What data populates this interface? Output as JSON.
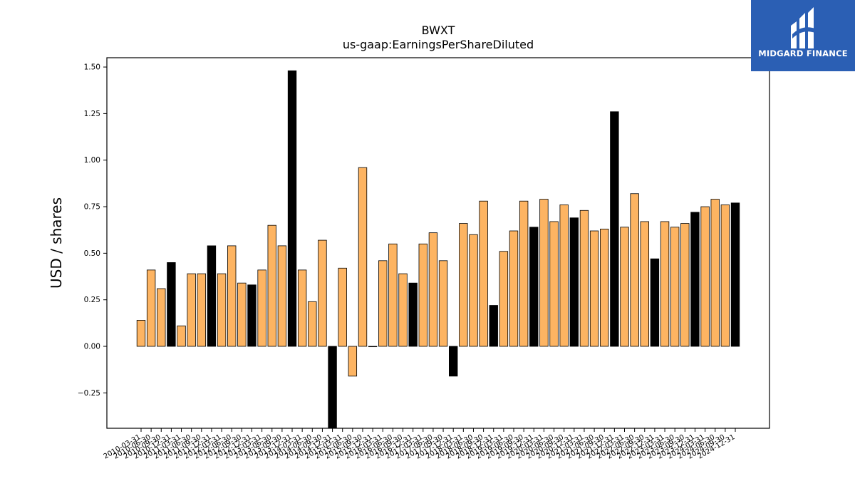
{
  "brand": {
    "name": "MIDGARD FINANCE",
    "bg_color": "#2b5fb4"
  },
  "colors": {
    "bar_default": "#fdb462",
    "bar_highlight": "#000000",
    "bar_edge": "#000000"
  },
  "chart_data": {
    "type": "bar",
    "title": "BWXT",
    "subtitle": "us-gaap:EarningsPerShareDiluted",
    "xlabel": "",
    "ylabel": "USD / shares",
    "ylim": [
      -0.44,
      1.55
    ],
    "yticks": [
      -0.25,
      0.0,
      0.25,
      0.5,
      0.75,
      1.0,
      1.25,
      1.5
    ],
    "ytick_labels": [
      "−0.25",
      "0.00",
      "0.25",
      "0.50",
      "0.75",
      "1.00",
      "1.25",
      "1.50"
    ],
    "grid": false,
    "legend": "none",
    "categories": [
      "2010-03-31",
      "2010-06-30",
      "2010-09-30",
      "2010-12-31",
      "2011-03-31",
      "2011-06-30",
      "2011-09-30",
      "2011-12-31",
      "2012-03-31",
      "2012-06-30",
      "2012-09-30",
      "2012-12-31",
      "2013-03-31",
      "2013-06-30",
      "2013-09-30",
      "2013-12-31",
      "2014-03-31",
      "2014-06-30",
      "2014-09-30",
      "2014-12-31",
      "2015-03-31",
      "2015-06-30",
      "2015-09-30",
      "2015-12-31",
      "2016-03-31",
      "2016-06-30",
      "2016-09-30",
      "2016-12-31",
      "2017-03-31",
      "2017-06-30",
      "2017-09-30",
      "2017-12-31",
      "2018-03-31",
      "2018-06-30",
      "2018-09-30",
      "2018-12-31",
      "2019-03-31",
      "2019-06-30",
      "2019-09-30",
      "2019-12-31",
      "2020-03-31",
      "2020-06-30",
      "2020-09-30",
      "2020-12-31",
      "2021-03-31",
      "2021-06-30",
      "2021-09-30",
      "2021-12-31",
      "2022-03-31",
      "2022-06-30",
      "2022-09-30",
      "2022-12-31",
      "2023-03-31",
      "2023-06-30",
      "2023-09-30",
      "2023-12-31",
      "2024-03-31",
      "2024-06-30",
      "2024-09-30",
      "2024-12-31"
    ],
    "values": [
      0.14,
      0.41,
      0.31,
      0.45,
      0.11,
      0.39,
      0.39,
      0.54,
      0.39,
      0.54,
      0.34,
      0.33,
      0.41,
      0.65,
      0.54,
      1.48,
      0.41,
      0.24,
      0.57,
      -0.45,
      0.42,
      -0.16,
      0.96,
      0.0,
      0.46,
      0.55,
      0.39,
      0.34,
      0.55,
      0.61,
      0.46,
      -0.16,
      0.66,
      0.6,
      0.78,
      0.22,
      0.51,
      0.62,
      0.78,
      0.64,
      0.79,
      0.67,
      0.76,
      0.69,
      0.73,
      0.62,
      0.63,
      1.26,
      0.64,
      0.82,
      0.67,
      0.47,
      0.67,
      0.64,
      0.66,
      0.72,
      0.75,
      0.79,
      0.76,
      0.77
    ],
    "highlight": [
      false,
      false,
      false,
      true,
      false,
      false,
      false,
      true,
      false,
      false,
      false,
      true,
      false,
      false,
      false,
      true,
      false,
      false,
      false,
      true,
      false,
      false,
      false,
      false,
      false,
      false,
      false,
      true,
      false,
      false,
      false,
      true,
      false,
      false,
      false,
      true,
      false,
      false,
      false,
      true,
      false,
      false,
      false,
      true,
      false,
      false,
      false,
      true,
      false,
      false,
      false,
      true,
      false,
      false,
      false,
      true,
      false,
      false,
      false,
      true
    ]
  }
}
